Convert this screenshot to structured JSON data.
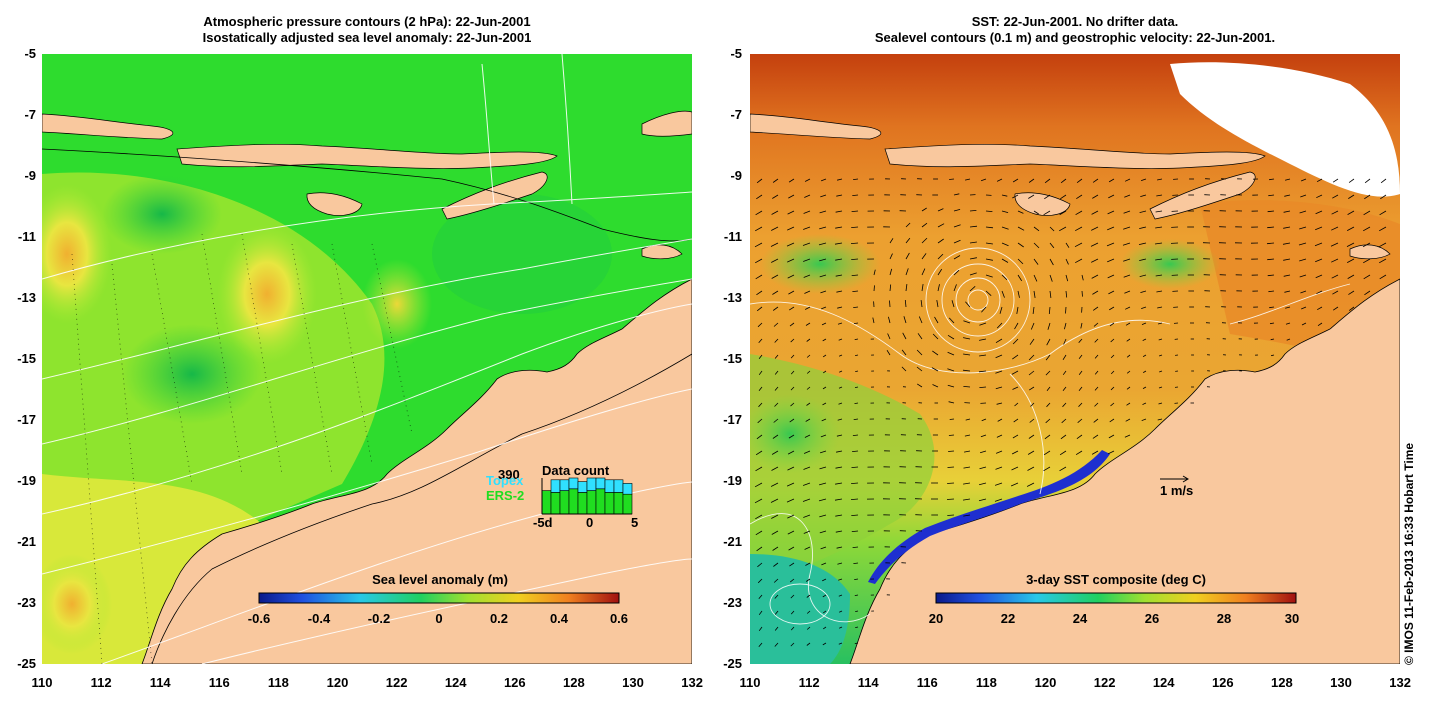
{
  "left_panel": {
    "title_line1": "Atmospheric pressure contours (2 hPa): 22-Jun-2001",
    "title_line2": "Isostatically adjusted sea level anomaly: 22-Jun-2001",
    "colorbar_title": "Sea level anomaly (m)",
    "colorbar_ticks": [
      "-0.6",
      "-0.4",
      "-0.2",
      "0",
      "0.2",
      "0.4",
      "0.6"
    ],
    "inset": {
      "count": "390",
      "topex": "Topex",
      "ers": "ERS-2",
      "title": "Data count",
      "axis_left": "-5d",
      "axis_mid": "0",
      "axis_right": "5",
      "topex_color": "#30e0ff",
      "ers_color": "#20dd20",
      "bars": [
        {
          "day": -5,
          "ers": 0.65,
          "topex": 0.0
        },
        {
          "day": -4,
          "ers": 0.6,
          "topex": 0.35
        },
        {
          "day": -3,
          "ers": 0.65,
          "topex": 0.3
        },
        {
          "day": -2,
          "ers": 0.7,
          "topex": 0.3
        },
        {
          "day": -1,
          "ers": 0.6,
          "topex": 0.3
        },
        {
          "day": 0,
          "ers": 0.65,
          "topex": 0.35
        },
        {
          "day": 1,
          "ers": 0.7,
          "topex": 0.3
        },
        {
          "day": 2,
          "ers": 0.6,
          "topex": 0.35
        },
        {
          "day": 3,
          "ers": 0.6,
          "topex": 0.35
        },
        {
          "day": 4,
          "ers": 0.55,
          "topex": 0.3
        }
      ]
    }
  },
  "right_panel": {
    "title_line1": "SST: 22-Jun-2001. No drifter data.",
    "title_line2": "Sealevel contours (0.1 m) and geostrophic velocity: 22-Jun-2001.",
    "colorbar_title": "3-day SST composite (deg C)",
    "colorbar_ticks": [
      "20",
      "22",
      "24",
      "26",
      "28",
      "30"
    ],
    "scale_label": "1 m/s"
  },
  "axes": {
    "lat_ticks": [
      "-5",
      "-7",
      "-9",
      "-11",
      "-13",
      "-15",
      "-17",
      "-19",
      "-21",
      "-23",
      "-25"
    ],
    "lon_ticks": [
      "110",
      "112",
      "114",
      "116",
      "118",
      "120",
      "122",
      "124",
      "126",
      "128",
      "130",
      "132"
    ]
  },
  "credit": "© IMOS 11-Feb-2013 16:33 Hobart Time",
  "colors": {
    "land": "#f9c89e",
    "ocean_green": "#2edc2e",
    "ocean_lime": "#8fe82e",
    "ocean_yellow": "#e6e63a",
    "sst_orange": "#ec9a30",
    "sst_red": "#c8400e",
    "sst_blue": "#1e2fd0"
  }
}
